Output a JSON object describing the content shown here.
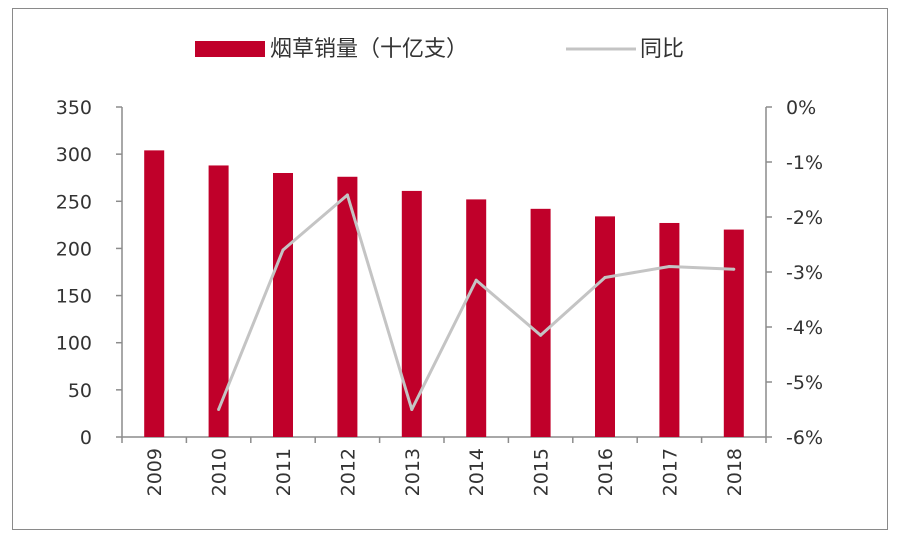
{
  "chart_data": {
    "type": "bar",
    "categories": [
      "2009",
      "2010",
      "2011",
      "2012",
      "2013",
      "2014",
      "2015",
      "2016",
      "2017",
      "2018"
    ],
    "series": [
      {
        "name": "烟草销量（十亿支）",
        "type": "bar",
        "axis": "left",
        "color": "#c0002a",
        "values": [
          304,
          288,
          280,
          276,
          261,
          252,
          242,
          234,
          227,
          220
        ]
      },
      {
        "name": "同比",
        "type": "line",
        "axis": "right",
        "color": "#c4c4c4",
        "values": [
          null,
          -5.5,
          -2.6,
          -1.6,
          -5.5,
          -3.15,
          -4.15,
          -3.1,
          -2.9,
          -2.95
        ]
      }
    ],
    "left_axis": {
      "ylim": [
        0,
        350
      ],
      "ticks": [
        "0",
        "50",
        "100",
        "150",
        "200",
        "250",
        "300",
        "350"
      ]
    },
    "right_axis": {
      "ylim": [
        -6,
        0
      ],
      "ticks": [
        "-6%",
        "-5%",
        "-4%",
        "-3%",
        "-2%",
        "-1%",
        "0%"
      ]
    },
    "legend": {
      "placement": "top-center",
      "items": [
        "烟草销量（十亿支）",
        "同比"
      ]
    },
    "grid": false
  }
}
